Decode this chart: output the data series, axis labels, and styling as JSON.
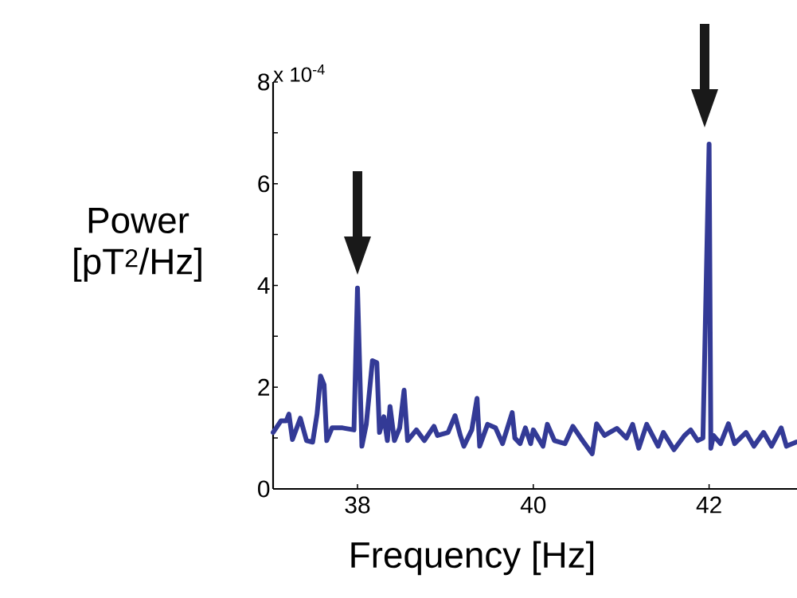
{
  "chart_data": {
    "type": "line",
    "xlabel": "Frequency [Hz]",
    "ylabel": "Power [pT$^{2}$/Hz]",
    "annotations": [
      "x 10$^{-4}$"
    ],
    "xlim": [
      37.04,
      43
    ],
    "ylim": [
      0,
      8
    ],
    "xticks": [
      38,
      40,
      42
    ],
    "yticks": [
      0,
      {
        "value": 1,
        "label": null
      },
      2,
      {
        "value": 3,
        "label": null
      },
      4,
      {
        "value": 5,
        "label": null
      },
      6,
      {
        "value": 7,
        "label": null
      },
      8
    ],
    "series": [
      {
        "color": "#333a96",
        "x": [
          37.04,
          37.13,
          37.19,
          37.22,
          37.26,
          37.35,
          37.42,
          37.49,
          37.54,
          37.58,
          37.62,
          37.65,
          37.71,
          37.83,
          37.96,
          38.0,
          38.05,
          38.1,
          38.17,
          38.22,
          38.25,
          38.3,
          38.34,
          38.37,
          38.42,
          38.48,
          38.53,
          38.57,
          38.67,
          38.76,
          38.87,
          38.91,
          39.03,
          39.11,
          39.17,
          39.21,
          39.3,
          39.36,
          39.39,
          39.48,
          39.57,
          39.65,
          39.76,
          39.79,
          39.85,
          39.91,
          39.97,
          40.0,
          40.11,
          40.16,
          40.24,
          40.36,
          40.45,
          40.56,
          40.67,
          40.72,
          40.81,
          40.95,
          41.06,
          41.13,
          41.2,
          41.29,
          41.42,
          41.48,
          41.6,
          41.72,
          41.79,
          41.87,
          41.93,
          42.0,
          42.02,
          42.05,
          42.13,
          42.22,
          42.29,
          42.42,
          42.51,
          42.62,
          42.71,
          42.82,
          42.88,
          42.99
        ],
        "values": [
          1.11,
          1.34,
          1.34,
          1.47,
          0.97,
          1.39,
          0.95,
          0.92,
          1.47,
          2.22,
          2.05,
          0.95,
          1.2,
          1.2,
          1.16,
          3.95,
          0.84,
          1.27,
          2.52,
          2.48,
          1.11,
          1.42,
          0.95,
          1.62,
          0.95,
          1.2,
          1.94,
          0.95,
          1.16,
          0.95,
          1.23,
          1.05,
          1.11,
          1.44,
          1.05,
          0.84,
          1.16,
          1.78,
          0.84,
          1.27,
          1.2,
          0.89,
          1.5,
          1.0,
          0.89,
          1.2,
          0.89,
          1.16,
          0.84,
          1.27,
          0.95,
          0.89,
          1.23,
          0.95,
          0.69,
          1.28,
          1.05,
          1.19,
          1.0,
          1.27,
          0.8,
          1.27,
          0.84,
          1.11,
          0.77,
          1.05,
          1.16,
          0.95,
          1.0,
          6.78,
          0.8,
          1.05,
          0.89,
          1.28,
          0.89,
          1.11,
          0.84,
          1.11,
          0.84,
          1.2,
          0.84,
          0.92
        ]
      }
    ]
  }
}
